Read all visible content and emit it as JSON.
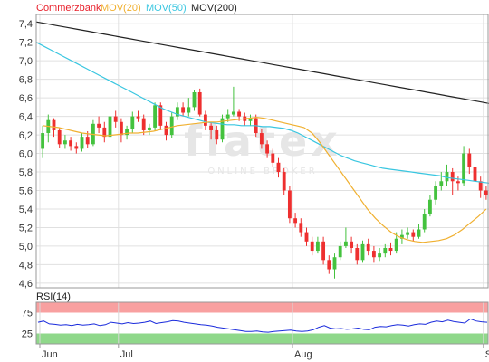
{
  "chart_data": [
    {
      "type": "candlestick",
      "legend": {
        "items": [
          {
            "label": "Commerzbank",
            "color": "#e8222d"
          },
          {
            "label": "MOV(20)",
            "color": "#f0b030"
          },
          {
            "label": "MOV(50)",
            "color": "#39c6e0"
          },
          {
            "label": "MOV(200)",
            "color": "#222222"
          }
        ],
        "placement": "top-left"
      },
      "ylim": [
        4.55,
        7.5
      ],
      "yticks": [
        "4,6",
        "4,8",
        "5,0",
        "5,2",
        "5,4",
        "5,6",
        "5,8",
        "6,0",
        "6,2",
        "6,4",
        "6,6",
        "6,8",
        "7,0",
        "7,2",
        "7,4"
      ],
      "xtick_labels": [
        {
          "label": "Jun",
          "index": 0
        },
        {
          "label": "Jul",
          "index": 14
        },
        {
          "label": "Aug",
          "index": 45
        },
        {
          "label": "Sep",
          "index": 79
        }
      ],
      "grid": true,
      "watermark": {
        "text": "flatex",
        "subtext": "ONLINE BROKER"
      },
      "colors": {
        "up": "#44c23e",
        "down": "#ee2f2f",
        "grid": "#e0e0e0"
      },
      "candles": [
        [
          6.05,
          6.22,
          6.3,
          5.95
        ],
        [
          6.22,
          6.36,
          6.42,
          6.12
        ],
        [
          6.36,
          6.25,
          6.38,
          6.18
        ],
        [
          6.25,
          6.1,
          6.28,
          6.06
        ],
        [
          6.1,
          6.14,
          6.2,
          6.05
        ],
        [
          6.14,
          6.08,
          6.18,
          6.03
        ],
        [
          6.08,
          6.05,
          6.12,
          6.0
        ],
        [
          6.05,
          6.18,
          6.22,
          6.02
        ],
        [
          6.18,
          6.1,
          6.24,
          6.06
        ],
        [
          6.1,
          6.32,
          6.36,
          6.08
        ],
        [
          6.32,
          6.28,
          6.4,
          6.22
        ],
        [
          6.28,
          6.18,
          6.34,
          6.12
        ],
        [
          6.18,
          6.4,
          6.44,
          6.15
        ],
        [
          6.4,
          6.34,
          6.46,
          6.28
        ],
        [
          6.34,
          6.2,
          6.38,
          6.12
        ],
        [
          6.2,
          6.26,
          6.3,
          6.15
        ],
        [
          6.26,
          6.4,
          6.45,
          6.22
        ],
        [
          6.4,
          6.38,
          6.46,
          6.34
        ],
        [
          6.38,
          6.25,
          6.42,
          6.2
        ],
        [
          6.25,
          6.28,
          6.32,
          6.2
        ],
        [
          6.28,
          6.52,
          6.55,
          6.25
        ],
        [
          6.52,
          6.3,
          6.55,
          6.25
        ],
        [
          6.3,
          6.2,
          6.34,
          6.14
        ],
        [
          6.2,
          6.4,
          6.44,
          6.17
        ],
        [
          6.4,
          6.5,
          6.55,
          6.36
        ],
        [
          6.5,
          6.44,
          6.55,
          6.4
        ],
        [
          6.44,
          6.5,
          6.6,
          6.4
        ],
        [
          6.5,
          6.66,
          6.68,
          6.46
        ],
        [
          6.66,
          6.42,
          6.7,
          6.4
        ],
        [
          6.42,
          6.3,
          6.46,
          6.25
        ],
        [
          6.3,
          6.25,
          6.34,
          6.15
        ],
        [
          6.25,
          6.15,
          6.3,
          6.1
        ],
        [
          6.15,
          6.38,
          6.42,
          6.12
        ],
        [
          6.38,
          6.42,
          6.48,
          6.34
        ],
        [
          6.42,
          6.45,
          6.72,
          6.4
        ],
        [
          6.45,
          6.4,
          6.48,
          6.35
        ],
        [
          6.4,
          6.35,
          6.44,
          6.3
        ],
        [
          6.35,
          6.38,
          6.42,
          6.3
        ],
        [
          6.38,
          6.22,
          6.42,
          6.18
        ],
        [
          6.22,
          6.1,
          6.26,
          6.05
        ],
        [
          6.1,
          6.0,
          6.14,
          5.95
        ],
        [
          6.0,
          5.9,
          6.05,
          5.85
        ],
        [
          5.9,
          5.8,
          5.95,
          5.74
        ],
        [
          5.8,
          5.6,
          5.84,
          5.55
        ],
        [
          5.6,
          5.3,
          5.65,
          5.25
        ],
        [
          5.3,
          5.25,
          5.36,
          5.2
        ],
        [
          5.25,
          5.15,
          5.3,
          5.1
        ],
        [
          5.15,
          5.05,
          5.2,
          5.0
        ],
        [
          5.05,
          4.95,
          5.1,
          4.9
        ],
        [
          4.95,
          5.05,
          5.1,
          4.92
        ],
        [
          5.05,
          4.85,
          5.1,
          4.8
        ],
        [
          4.85,
          4.75,
          4.9,
          4.7
        ],
        [
          4.75,
          4.88,
          4.92,
          4.65
        ],
        [
          4.88,
          5.0,
          5.05,
          4.85
        ],
        [
          5.0,
          5.05,
          5.2,
          4.98
        ],
        [
          5.05,
          4.98,
          5.1,
          4.92
        ],
        [
          4.98,
          4.85,
          5.02,
          4.8
        ],
        [
          4.85,
          5.02,
          5.06,
          4.82
        ],
        [
          5.02,
          4.95,
          5.08,
          4.9
        ],
        [
          4.95,
          4.88,
          5.0,
          4.82
        ],
        [
          4.88,
          4.92,
          4.98,
          4.84
        ],
        [
          4.92,
          4.98,
          5.02,
          4.88
        ],
        [
          4.98,
          4.95,
          5.04,
          4.9
        ],
        [
          4.95,
          5.08,
          5.15,
          4.92
        ],
        [
          5.08,
          5.12,
          5.18,
          5.02
        ],
        [
          5.12,
          5.15,
          5.2,
          5.08
        ],
        [
          5.15,
          5.1,
          5.18,
          5.05
        ],
        [
          5.1,
          5.18,
          5.24,
          5.08
        ],
        [
          5.18,
          5.35,
          5.4,
          5.15
        ],
        [
          5.35,
          5.5,
          5.55,
          5.32
        ],
        [
          5.5,
          5.65,
          5.7,
          5.45
        ],
        [
          5.65,
          5.7,
          5.8,
          5.6
        ],
        [
          5.7,
          5.8,
          5.88,
          5.65
        ],
        [
          5.8,
          5.7,
          5.84,
          5.55
        ],
        [
          5.7,
          5.68,
          5.75,
          5.6
        ],
        [
          5.68,
          6.0,
          6.08,
          5.65
        ],
        [
          6.0,
          5.85,
          6.05,
          5.78
        ],
        [
          5.85,
          5.7,
          5.9,
          5.6
        ],
        [
          5.7,
          5.6,
          5.75,
          5.52
        ],
        [
          5.6,
          5.55,
          5.65,
          5.5
        ]
      ],
      "mov20": [
        6.3,
        6.29,
        6.28,
        6.26,
        6.24,
        6.22,
        6.21,
        6.2,
        6.19,
        6.2,
        6.21,
        6.22,
        6.22,
        6.23,
        6.24,
        6.26,
        6.28,
        6.3,
        6.31,
        6.32,
        6.33,
        6.34,
        6.34,
        6.35,
        6.36,
        6.37,
        6.38,
        6.39,
        6.38,
        6.36,
        6.34,
        6.32,
        6.3,
        6.28,
        6.22,
        6.12,
        6.0,
        5.88,
        5.76,
        5.64,
        5.52,
        5.4,
        5.3,
        5.22,
        5.15,
        5.1,
        5.07,
        5.05,
        5.04,
        5.05,
        5.06,
        5.08,
        5.12,
        5.18,
        5.25,
        5.32,
        5.4
      ],
      "mov20_start": 23,
      "mov50": [
        7.2,
        7.16,
        7.12,
        7.08,
        7.04,
        7.0,
        6.96,
        6.92,
        6.88,
        6.84,
        6.8,
        6.76,
        6.72,
        6.68,
        6.64,
        6.6,
        6.56,
        6.52,
        6.48,
        6.45,
        6.42,
        6.4,
        6.38,
        6.36,
        6.34,
        6.33,
        6.32,
        6.31,
        6.31,
        6.3,
        6.3,
        6.3,
        6.29,
        6.29,
        6.28,
        6.27,
        6.25,
        6.22,
        6.18,
        6.14,
        6.1,
        6.06,
        6.02,
        5.98,
        5.95,
        5.92,
        5.9,
        5.88,
        5.86,
        5.84,
        5.83,
        5.82,
        5.81,
        5.8,
        5.79,
        5.78,
        5.77,
        5.76,
        5.74,
        5.73,
        5.72,
        5.71,
        5.7,
        5.69,
        5.68
      ],
      "mov50_start": 0,
      "mov200": [
        7.42,
        7.4,
        7.38,
        7.36,
        7.34,
        7.32,
        7.3,
        7.28,
        7.26,
        7.24,
        7.22,
        7.2,
        7.18,
        7.16,
        7.14,
        7.12,
        7.1,
        7.08,
        7.06,
        7.04,
        7.02,
        7.0,
        6.98,
        6.96,
        6.94,
        6.92,
        6.9,
        6.88,
        6.86,
        6.84,
        6.82,
        6.8,
        6.78,
        6.76,
        6.74,
        6.72,
        6.7,
        6.68,
        6.66,
        6.64,
        6.62,
        6.6,
        6.58,
        6.56,
        6.54
      ],
      "mov200_start": 0
    },
    {
      "type": "line",
      "legend": {
        "label": "RSI(14)",
        "placement": "top-left"
      },
      "ylim": [
        0,
        100
      ],
      "yticks": [
        "25",
        "75"
      ],
      "bands": {
        "overbought": [
          75,
          100
        ],
        "oversold": [
          0,
          25
        ],
        "neutral": [
          25,
          75
        ]
      },
      "colors": {
        "line": "#1a2bdc",
        "overbought": "#f8a0a0",
        "oversold": "#8fd88a",
        "neutral": "#ffffff"
      },
      "xtick_labels": [
        "Jun",
        "Jul",
        "Aug",
        "Sep"
      ],
      "values": [
        52,
        55,
        48,
        47,
        45,
        46,
        44,
        47,
        45,
        46,
        48,
        44,
        46,
        52,
        50,
        48,
        51,
        49,
        50,
        52,
        55,
        49,
        51,
        53,
        56,
        55,
        52,
        50,
        48,
        46,
        45,
        43,
        40,
        38,
        36,
        34,
        32,
        30,
        30,
        31,
        29,
        28,
        30,
        31,
        32,
        33,
        31,
        30,
        31,
        34,
        40,
        44,
        38,
        36,
        37,
        35,
        36,
        38,
        35,
        34,
        40,
        42,
        41,
        44,
        46,
        45,
        43,
        46,
        48,
        47,
        52,
        55,
        53,
        57,
        54,
        52,
        50,
        60,
        55,
        53,
        52
      ]
    }
  ]
}
